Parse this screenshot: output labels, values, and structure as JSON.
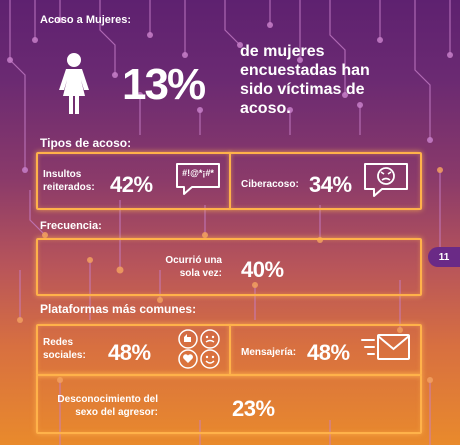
{
  "header": {
    "title": "Acoso a Mujeres:"
  },
  "hero": {
    "percent": "13%",
    "text": "de mujeres encuestadas han sido víctimas de acoso."
  },
  "types": {
    "title": "Tipos de acoso:",
    "insults": {
      "label": "Insultos reiterados:",
      "percent": "42%",
      "icon_text": "#!@*¡#*"
    },
    "cyber": {
      "label": "Ciberacoso:",
      "percent": "34%"
    }
  },
  "frequency": {
    "title": "Frecuencia:",
    "label": "Ocurrió una sola vez:",
    "percent": "40%"
  },
  "platforms": {
    "title": "Plataformas más comunes:",
    "social": {
      "label": "Redes sociales:",
      "percent": "48%"
    },
    "messaging": {
      "label": "Mensajería:",
      "percent": "48%"
    },
    "unknown": {
      "label": "Desconocimiento del sexo del agresor:",
      "percent": "23%"
    }
  },
  "page_number": "11",
  "colors": {
    "accent": "#ffb24a",
    "badge": "#6a2a86"
  }
}
